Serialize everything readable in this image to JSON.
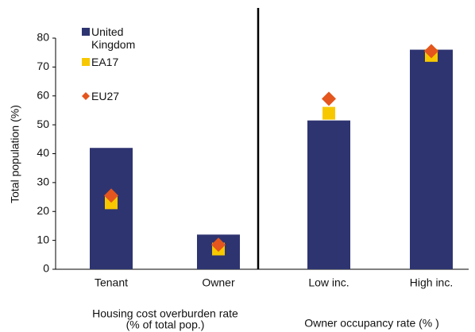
{
  "chart_data": {
    "type": "bar",
    "y_label": "Total population (%)",
    "categories": [
      "Tenant",
      "Owner",
      "Low inc.",
      "High inc."
    ],
    "series": [
      {
        "name": "United Kingdom",
        "color": "#2e3470",
        "mark": "bar",
        "values": [
          42,
          12,
          51.5,
          76
        ]
      },
      {
        "name": "EA17",
        "color": "#f7c800",
        "mark": "square",
        "values": [
          23,
          7,
          54,
          74
        ]
      },
      {
        "name": "EU27",
        "color": "#e4561d",
        "mark": "diamond",
        "values": [
          25.5,
          8.5,
          59,
          75.5
        ]
      }
    ],
    "ylim": [
      0,
      80
    ],
    "yticks": [
      0,
      10,
      20,
      30,
      40,
      50,
      60,
      70,
      80
    ],
    "grid": false,
    "group_labels": [
      "Housing cost overburden rate",
      "(% of total pop.)",
      "Owner occupancy rate (% )"
    ]
  }
}
